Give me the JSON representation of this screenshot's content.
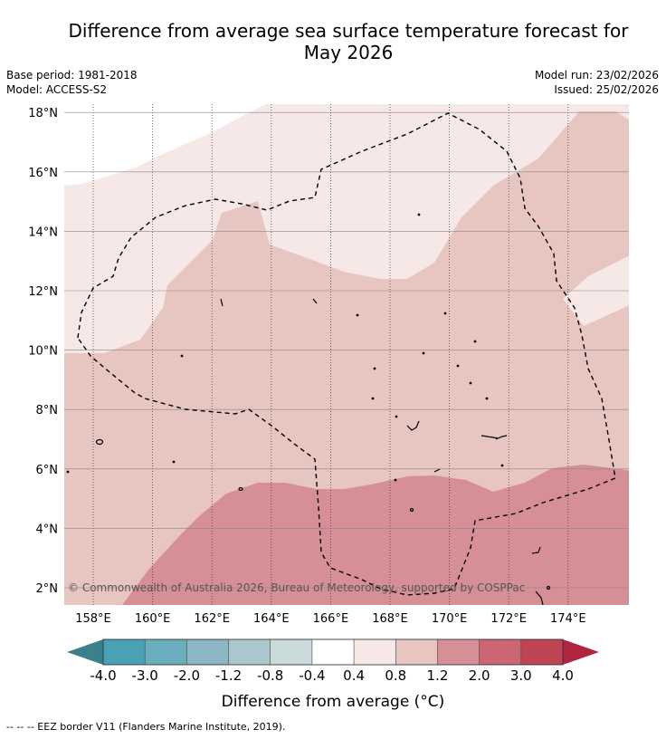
{
  "title_line1": "Difference from average sea surface temperature forecast for",
  "title_line2": "May 2026",
  "base_period": "Base period: 1981-2018",
  "model": "Model: ACCESS-S2",
  "model_run": "Model run: 23/02/2026",
  "issued": "Issued: 25/02/2026",
  "copyright": "© Commonwealth of Australia 2026, Bureau of Meteorology, supported by COSPPac",
  "lon_labels": [
    "158°E",
    "160°E",
    "162°E",
    "164°E",
    "166°E",
    "168°E",
    "170°E",
    "172°E",
    "174°E"
  ],
  "lat_labels": [
    "2°N",
    "4°N",
    "6°N",
    "8°N",
    "10°N",
    "12°N",
    "14°N",
    "16°N",
    "18°N"
  ],
  "legend": {
    "title": "Difference from average (°C)",
    "tick_labels": [
      "-4.0",
      "-3.0",
      "-2.0",
      "-1.2",
      "-0.8",
      "-0.4",
      "0.4",
      "0.8",
      "1.2",
      "2.0",
      "3.0",
      "4.0"
    ],
    "colors": [
      "#478797",
      "#4aa1b4",
      "#6aaebe",
      "#8cb8c5",
      "#a8c8cd",
      "#cbdadb",
      "#ffffff",
      "#f5e8e7",
      "#e7c5c1",
      "#d68f96",
      "#cc6574",
      "#c04454"
    ],
    "under_color": "#3e7f8c",
    "over_color": "#b22540"
  },
  "footer": "--  --  -- EEZ border V11 (Flanders Marine Institute, 2019)."
}
